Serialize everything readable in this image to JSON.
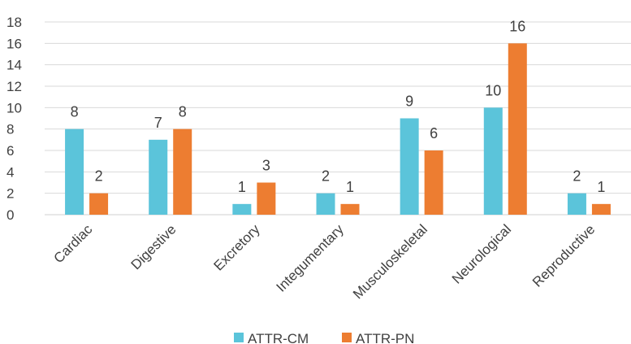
{
  "chart_data": {
    "type": "bar",
    "categories": [
      "Cardiac",
      "Digestive",
      "Excretory",
      "Integumentary",
      "Musculoskeletal",
      "Neurological",
      "Reproductive"
    ],
    "series": [
      {
        "name": "ATTR-CM",
        "values": [
          8,
          7,
          1,
          2,
          9,
          10,
          2
        ],
        "color": "#5BC4DA"
      },
      {
        "name": "ATTR-PN",
        "values": [
          2,
          8,
          3,
          1,
          6,
          16,
          1
        ],
        "color": "#ED7D31"
      }
    ],
    "ylim": [
      0,
      18
    ],
    "yticks": [
      "0",
      "2",
      "4",
      "6",
      "8",
      "10",
      "12",
      "14",
      "16",
      "18"
    ],
    "grid": true,
    "legend": "bottom",
    "title": "",
    "xlabel": "",
    "ylabel": ""
  }
}
